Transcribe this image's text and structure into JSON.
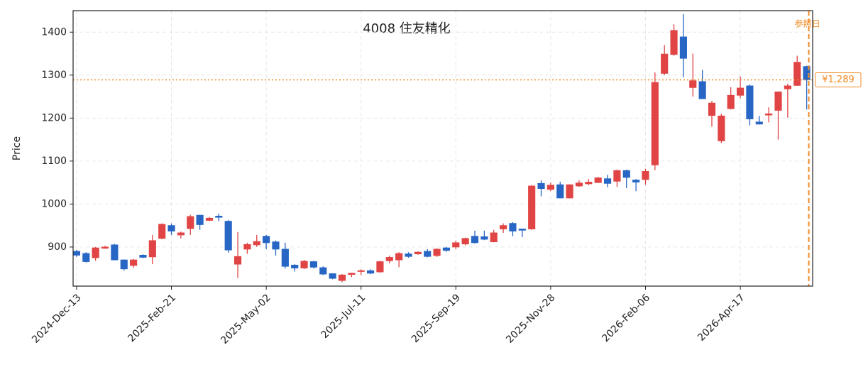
{
  "chart_data": {
    "type": "candlestick",
    "title": "4008  住友精化",
    "ylabel": "Price",
    "categories": [
      "2024-Dec-13",
      null,
      null,
      null,
      null,
      null,
      null,
      null,
      null,
      null,
      "2025-Feb-21",
      null,
      null,
      null,
      null,
      null,
      null,
      null,
      null,
      null,
      "2025-May-02",
      null,
      null,
      null,
      null,
      null,
      null,
      null,
      null,
      null,
      "2025-Jul-11",
      null,
      null,
      null,
      null,
      null,
      null,
      null,
      null,
      null,
      "2025-Sep-19",
      null,
      null,
      null,
      null,
      null,
      null,
      null,
      null,
      null,
      "2025-Nov-28",
      null,
      null,
      null,
      null,
      null,
      null,
      null,
      null,
      null,
      "2026-Feb-06",
      null,
      null,
      null,
      null,
      null,
      null,
      null,
      null,
      null,
      "2026-Apr-17",
      null,
      null,
      null,
      null,
      null,
      null,
      null
    ],
    "open": [
      890,
      885,
      875,
      897,
      905,
      870,
      857,
      881,
      877,
      920,
      950,
      928,
      943,
      974,
      962,
      972,
      960,
      860,
      895,
      905,
      925,
      912,
      895,
      858,
      851,
      866,
      852,
      838,
      822,
      836,
      843,
      845,
      842,
      868,
      870,
      884,
      884,
      890,
      880,
      898,
      900,
      907,
      925,
      924,
      912,
      942,
      955,
      942,
      942,
      1048,
      1034,
      1045,
      1014,
      1042,
      1047,
      1050,
      1059,
      1053,
      1078,
      1056,
      1057,
      1091,
      1304,
      1348,
      1389,
      1271,
      1285,
      1206,
      1147,
      1222,
      1253,
      1275,
      1191,
      1207,
      1218,
      1268,
      1276,
      1320
    ],
    "high": [
      893,
      888,
      900,
      903,
      907,
      871,
      872,
      883,
      928,
      955,
      955,
      936,
      975,
      975,
      970,
      978,
      963,
      935,
      910,
      928,
      928,
      915,
      910,
      860,
      870,
      868,
      855,
      839,
      837,
      840,
      848,
      848,
      868,
      880,
      888,
      888,
      890,
      895,
      897,
      900,
      915,
      922,
      938,
      938,
      940,
      955,
      958,
      942,
      1044,
      1055,
      1050,
      1052,
      1046,
      1055,
      1058,
      1063,
      1068,
      1080,
      1080,
      1058,
      1082,
      1306,
      1370,
      1418,
      1442,
      1350,
      1312,
      1240,
      1210,
      1272,
      1297,
      1278,
      1205,
      1225,
      1262,
      1280,
      1345,
      1322
    ],
    "low": [
      877,
      864,
      868,
      896,
      869,
      845,
      852,
      874,
      860,
      918,
      928,
      920,
      928,
      940,
      960,
      960,
      887,
      828,
      884,
      900,
      895,
      880,
      850,
      843,
      849,
      850,
      835,
      825,
      818,
      830,
      835,
      837,
      840,
      862,
      853,
      875,
      882,
      876,
      877,
      889,
      895,
      904,
      908,
      916,
      911,
      933,
      925,
      923,
      940,
      1018,
      1030,
      1014,
      1013,
      1040,
      1044,
      1049,
      1039,
      1040,
      1037,
      1030,
      1045,
      1079,
      1300,
      1345,
      1295,
      1250,
      1245,
      1180,
      1142,
      1220,
      1246,
      1183,
      1185,
      1190,
      1150,
      1201,
      1275,
      1220
    ],
    "close": [
      881,
      866,
      898,
      900,
      870,
      849,
      870,
      876,
      915,
      953,
      937,
      933,
      971,
      952,
      967,
      969,
      893,
      878,
      906,
      913,
      910,
      895,
      855,
      851,
      867,
      853,
      837,
      827,
      835,
      839,
      845,
      839,
      866,
      876,
      885,
      878,
      888,
      878,
      895,
      892,
      910,
      920,
      910,
      918,
      933,
      950,
      937,
      939,
      1042,
      1036,
      1044,
      1014,
      1045,
      1049,
      1051,
      1061,
      1048,
      1078,
      1062,
      1051,
      1076,
      1283,
      1349,
      1404,
      1339,
      1287,
      1245,
      1235,
      1205,
      1253,
      1270,
      1198,
      1186,
      1210,
      1261,
      1275,
      1330,
      1289
    ],
    "up_color": "#e04444",
    "down_color": "#2766c4",
    "ylim": [
      809,
      1450
    ],
    "yticks": [
      900,
      1000,
      1100,
      1200,
      1300,
      1400
    ],
    "grid": true,
    "reference_price": {
      "value": 1289,
      "label": "¥1,289"
    },
    "reference_date_label": "参照日",
    "reference_color": "#f08a24"
  }
}
